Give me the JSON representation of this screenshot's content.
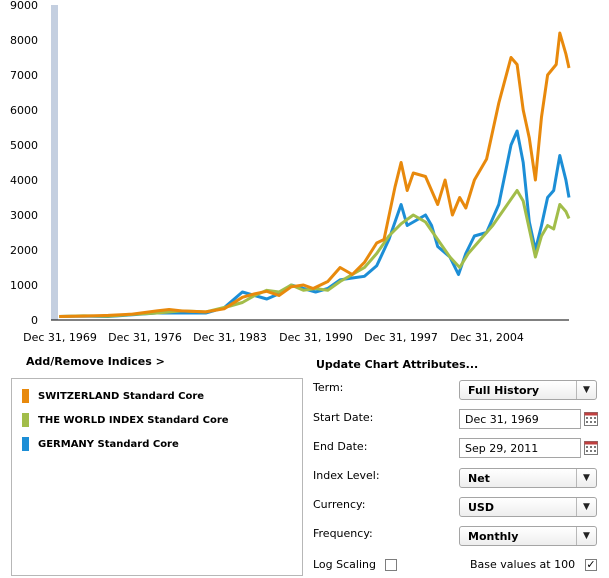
{
  "chart_data": {
    "type": "line",
    "y_ticks": [
      "9000",
      "8000",
      "7000",
      "6000",
      "5000",
      "4000",
      "3000",
      "2000",
      "1000",
      "0"
    ],
    "x_ticks": [
      "Dec 31, 1969",
      "Dec 31, 1976",
      "Dec 31, 1983",
      "Dec 31, 1990",
      "Dec 31, 1997",
      "Dec 31, 2004"
    ],
    "ylim": [
      0,
      9000
    ],
    "xlim": [
      1969.9,
      2011.75
    ],
    "series": [
      {
        "name": "SWITZERLAND Standard Core",
        "color": "#e8890c",
        "points": [
          [
            1970,
            100
          ],
          [
            1972,
            110
          ],
          [
            1974,
            130
          ],
          [
            1976,
            170
          ],
          [
            1978,
            260
          ],
          [
            1979,
            300
          ],
          [
            1980,
            260
          ],
          [
            1982,
            230
          ],
          [
            1983.5,
            320
          ],
          [
            1985,
            650
          ],
          [
            1986,
            750
          ],
          [
            1987,
            820
          ],
          [
            1988,
            700
          ],
          [
            1989,
            950
          ],
          [
            1990,
            1000
          ],
          [
            1990.8,
            900
          ],
          [
            1992,
            1100
          ],
          [
            1993,
            1500
          ],
          [
            1994,
            1300
          ],
          [
            1995,
            1650
          ],
          [
            1996,
            2200
          ],
          [
            1996.6,
            2300
          ],
          [
            1997.5,
            3800
          ],
          [
            1998,
            4500
          ],
          [
            1998.5,
            3700
          ],
          [
            1999,
            4200
          ],
          [
            2000,
            4100
          ],
          [
            2001,
            3300
          ],
          [
            2001.6,
            4000
          ],
          [
            2002.2,
            3000
          ],
          [
            2002.8,
            3500
          ],
          [
            2003.3,
            3200
          ],
          [
            2004,
            4000
          ],
          [
            2005,
            4600
          ],
          [
            2006,
            6200
          ],
          [
            2007,
            7500
          ],
          [
            2007.5,
            7300
          ],
          [
            2008,
            6000
          ],
          [
            2008.5,
            5200
          ],
          [
            2009,
            4000
          ],
          [
            2009.5,
            5800
          ],
          [
            2010,
            7000
          ],
          [
            2010.7,
            7300
          ],
          [
            2011,
            8200
          ],
          [
            2011.5,
            7600
          ],
          [
            2011.75,
            7200
          ]
        ]
      },
      {
        "name": "THE WORLD INDEX Standard Core",
        "color": "#a2bd4a",
        "points": [
          [
            1970,
            100
          ],
          [
            1972,
            120
          ],
          [
            1974,
            110
          ],
          [
            1976,
            160
          ],
          [
            1978,
            200
          ],
          [
            1980,
            260
          ],
          [
            1982,
            230
          ],
          [
            1984,
            400
          ],
          [
            1985,
            500
          ],
          [
            1986,
            700
          ],
          [
            1987,
            850
          ],
          [
            1988,
            800
          ],
          [
            1989,
            1000
          ],
          [
            1990,
            850
          ],
          [
            1991,
            900
          ],
          [
            1992,
            850
          ],
          [
            1993,
            1100
          ],
          [
            1994,
            1300
          ],
          [
            1995,
            1500
          ],
          [
            1996,
            1900
          ],
          [
            1997,
            2400
          ],
          [
            1998,
            2750
          ],
          [
            1999,
            3000
          ],
          [
            2000,
            2800
          ],
          [
            2001,
            2300
          ],
          [
            2002,
            1800
          ],
          [
            2002.8,
            1500
          ],
          [
            2003.5,
            1900
          ],
          [
            2004.5,
            2300
          ],
          [
            2005.5,
            2700
          ],
          [
            2006.5,
            3200
          ],
          [
            2007.5,
            3700
          ],
          [
            2008,
            3400
          ],
          [
            2008.5,
            2600
          ],
          [
            2009,
            1800
          ],
          [
            2009.5,
            2400
          ],
          [
            2010,
            2700
          ],
          [
            2010.5,
            2600
          ],
          [
            2011,
            3300
          ],
          [
            2011.5,
            3100
          ],
          [
            2011.75,
            2900
          ]
        ]
      },
      {
        "name": "GERMANY Standard Core",
        "color": "#1c8ed6",
        "points": [
          [
            1970,
            100
          ],
          [
            1972,
            110
          ],
          [
            1974,
            100
          ],
          [
            1976,
            150
          ],
          [
            1978,
            200
          ],
          [
            1980,
            200
          ],
          [
            1982,
            200
          ],
          [
            1983.5,
            350
          ],
          [
            1985,
            800
          ],
          [
            1986,
            700
          ],
          [
            1987,
            600
          ],
          [
            1988,
            750
          ],
          [
            1989,
            1000
          ],
          [
            1990,
            900
          ],
          [
            1991,
            800
          ],
          [
            1992,
            900
          ],
          [
            1993,
            1150
          ],
          [
            1994,
            1200
          ],
          [
            1995,
            1250
          ],
          [
            1996,
            1550
          ],
          [
            1997,
            2300
          ],
          [
            1998,
            3300
          ],
          [
            1998.5,
            2700
          ],
          [
            1999,
            2800
          ],
          [
            2000,
            3000
          ],
          [
            2000.5,
            2700
          ],
          [
            2001,
            2100
          ],
          [
            2002,
            1800
          ],
          [
            2002.7,
            1300
          ],
          [
            2003.3,
            1900
          ],
          [
            2004,
            2400
          ],
          [
            2005,
            2500
          ],
          [
            2006,
            3300
          ],
          [
            2007,
            5000
          ],
          [
            2007.5,
            5400
          ],
          [
            2008,
            4500
          ],
          [
            2008.5,
            2800
          ],
          [
            2009,
            2000
          ],
          [
            2009.5,
            2700
          ],
          [
            2010,
            3500
          ],
          [
            2010.5,
            3700
          ],
          [
            2011,
            4700
          ],
          [
            2011.5,
            4000
          ],
          [
            2011.75,
            3500
          ]
        ]
      }
    ]
  },
  "panel": {
    "add_remove": "Add/Remove Indices >",
    "update_title": "Update Chart Attributes...",
    "legend": [
      {
        "label": "SWITZERLAND Standard Core",
        "color": "#e8890c"
      },
      {
        "label": "THE WORLD INDEX Standard Core",
        "color": "#a2bd4a"
      },
      {
        "label": "GERMANY Standard Core",
        "color": "#1c8ed6"
      }
    ]
  },
  "attributes": {
    "term_label": "Term:",
    "term_value": "Full History",
    "start_label": "Start Date:",
    "start_value": "Dec 31, 1969",
    "end_label": "End Date:",
    "end_value": "Sep 29, 2011",
    "level_label": "Index Level:",
    "level_value": "Net",
    "currency_label": "Currency:",
    "currency_value": "USD",
    "frequency_label": "Frequency:",
    "frequency_value": "Monthly",
    "log_label": "Log Scaling",
    "log_checked": false,
    "base_label": "Base values at 100",
    "base_checked": true,
    "base_check_glyph": "✓"
  }
}
